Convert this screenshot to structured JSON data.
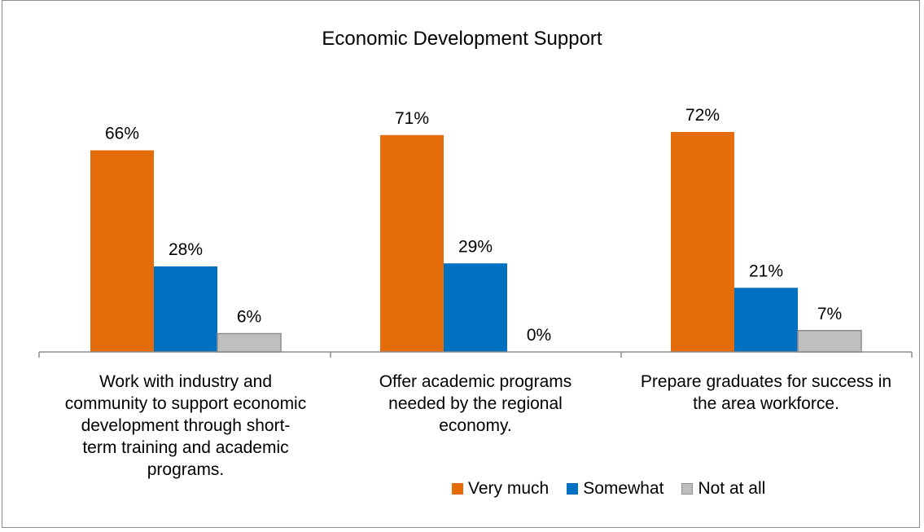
{
  "chart_data": {
    "type": "bar",
    "title": "Economic Development Support",
    "categories": [
      "Work with industry and community to support economic development through short-term training and academic programs.",
      "Offer academic programs needed by the regional economy.",
      "Prepare graduates for success in the area workforce."
    ],
    "category_lines": [
      [
        "Work with industry and",
        "community to support economic",
        "development through short-",
        "term training and academic",
        "programs."
      ],
      [
        "Offer academic programs",
        "needed by the regional",
        "economy."
      ],
      [
        "Prepare graduates for success in",
        "the area workforce."
      ]
    ],
    "series": [
      {
        "name": "Very much",
        "color": "#E46C0A",
        "values": [
          66,
          71,
          72
        ],
        "labels": [
          "66%",
          "71%",
          "72%"
        ]
      },
      {
        "name": "Somewhat",
        "color": "#0070C0",
        "values": [
          28,
          29,
          21
        ],
        "labels": [
          "28%",
          "29%",
          "21%"
        ]
      },
      {
        "name": "Not at all",
        "color": "#BFBFBF",
        "values": [
          6,
          0,
          7
        ],
        "labels": [
          "6%",
          "0%",
          "7%"
        ]
      }
    ],
    "ylim": [
      0,
      100
    ],
    "grid": false,
    "legend_position": "bottom-right"
  }
}
